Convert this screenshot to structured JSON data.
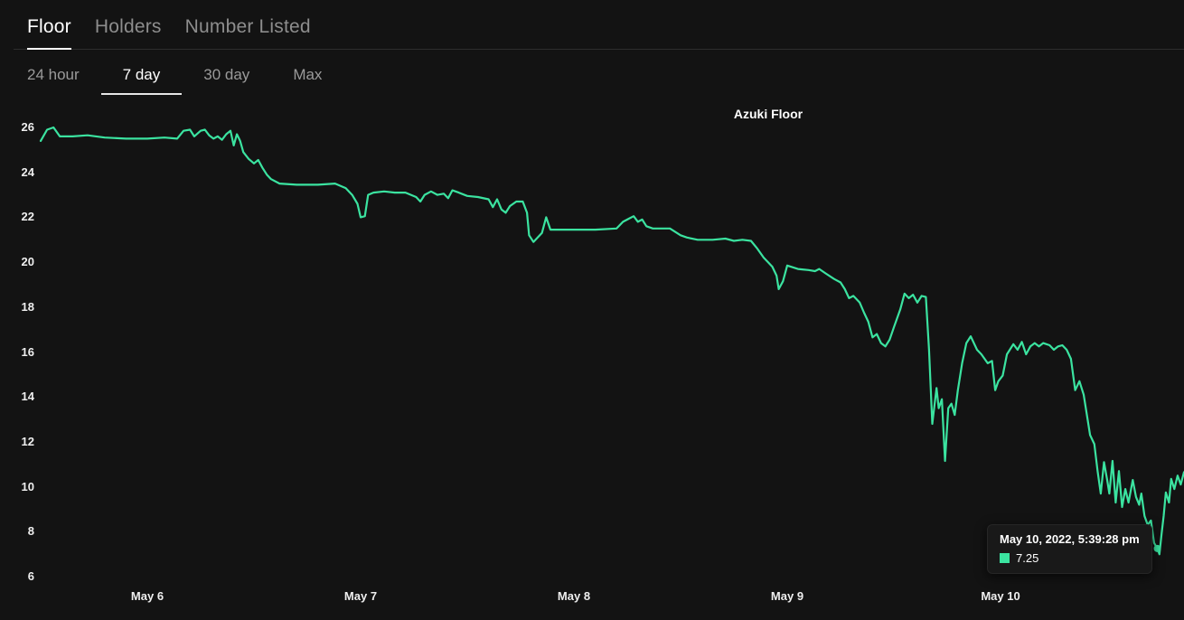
{
  "tabs": {
    "metric": [
      {
        "label": "Floor",
        "active": true
      },
      {
        "label": "Holders",
        "active": false
      },
      {
        "label": "Number Listed",
        "active": false
      }
    ],
    "range": [
      {
        "label": "24 hour",
        "active": false
      },
      {
        "label": "7 day",
        "active": true
      },
      {
        "label": "30 day",
        "active": false
      },
      {
        "label": "Max",
        "active": false
      }
    ]
  },
  "chart_data": {
    "type": "line",
    "title": "Azuki Floor",
    "x_unit": "days since May 6, 2022 00:00",
    "x_range_days": [
      -0.5,
      4.86
    ],
    "y_range": [
      6,
      26
    ],
    "grid": false,
    "legend": "none",
    "x_ticks": [
      {
        "pos": 0,
        "label": "May 6"
      },
      {
        "pos": 1,
        "label": "May 7"
      },
      {
        "pos": 2,
        "label": "May 8"
      },
      {
        "pos": 3,
        "label": "May 9"
      },
      {
        "pos": 4,
        "label": "May 10"
      }
    ],
    "y_ticks": [
      26,
      24,
      22,
      20,
      18,
      16,
      14,
      12,
      10,
      8,
      6
    ],
    "series": [
      {
        "name": "Azuki Floor",
        "color": "#3be3a0",
        "points": [
          [
            -0.5,
            25.4
          ],
          [
            -0.47,
            25.9
          ],
          [
            -0.44,
            26.0
          ],
          [
            -0.41,
            25.6
          ],
          [
            -0.35,
            25.6
          ],
          [
            -0.28,
            25.65
          ],
          [
            -0.2,
            25.55
          ],
          [
            -0.1,
            25.5
          ],
          [
            0.0,
            25.5
          ],
          [
            0.08,
            25.55
          ],
          [
            0.14,
            25.5
          ],
          [
            0.17,
            25.85
          ],
          [
            0.2,
            25.9
          ],
          [
            0.22,
            25.6
          ],
          [
            0.25,
            25.85
          ],
          [
            0.27,
            25.9
          ],
          [
            0.29,
            25.65
          ],
          [
            0.31,
            25.5
          ],
          [
            0.33,
            25.6
          ],
          [
            0.35,
            25.45
          ],
          [
            0.37,
            25.7
          ],
          [
            0.39,
            25.85
          ],
          [
            0.405,
            25.2
          ],
          [
            0.42,
            25.7
          ],
          [
            0.435,
            25.4
          ],
          [
            0.45,
            24.9
          ],
          [
            0.475,
            24.6
          ],
          [
            0.5,
            24.4
          ],
          [
            0.52,
            24.55
          ],
          [
            0.54,
            24.2
          ],
          [
            0.56,
            23.9
          ],
          [
            0.58,
            23.7
          ],
          [
            0.62,
            23.5
          ],
          [
            0.7,
            23.45
          ],
          [
            0.8,
            23.45
          ],
          [
            0.88,
            23.5
          ],
          [
            0.93,
            23.3
          ],
          [
            0.96,
            23.0
          ],
          [
            0.985,
            22.6
          ],
          [
            1.0,
            22.0
          ],
          [
            1.02,
            22.05
          ],
          [
            1.035,
            23.0
          ],
          [
            1.06,
            23.1
          ],
          [
            1.11,
            23.15
          ],
          [
            1.16,
            23.1
          ],
          [
            1.21,
            23.1
          ],
          [
            1.26,
            22.9
          ],
          [
            1.28,
            22.7
          ],
          [
            1.3,
            23.0
          ],
          [
            1.33,
            23.15
          ],
          [
            1.36,
            23.0
          ],
          [
            1.39,
            23.05
          ],
          [
            1.41,
            22.85
          ],
          [
            1.43,
            23.2
          ],
          [
            1.46,
            23.1
          ],
          [
            1.5,
            22.95
          ],
          [
            1.55,
            22.9
          ],
          [
            1.6,
            22.8
          ],
          [
            1.62,
            22.45
          ],
          [
            1.64,
            22.8
          ],
          [
            1.66,
            22.35
          ],
          [
            1.68,
            22.2
          ],
          [
            1.7,
            22.5
          ],
          [
            1.73,
            22.7
          ],
          [
            1.76,
            22.7
          ],
          [
            1.78,
            22.2
          ],
          [
            1.79,
            21.2
          ],
          [
            1.81,
            20.9
          ],
          [
            1.83,
            21.1
          ],
          [
            1.85,
            21.3
          ],
          [
            1.87,
            22.0
          ],
          [
            1.89,
            21.45
          ],
          [
            2.0,
            21.45
          ],
          [
            2.1,
            21.45
          ],
          [
            2.2,
            21.5
          ],
          [
            2.23,
            21.8
          ],
          [
            2.26,
            21.95
          ],
          [
            2.28,
            22.05
          ],
          [
            2.3,
            21.8
          ],
          [
            2.32,
            21.9
          ],
          [
            2.34,
            21.6
          ],
          [
            2.37,
            21.5
          ],
          [
            2.45,
            21.5
          ],
          [
            2.5,
            21.2
          ],
          [
            2.53,
            21.1
          ],
          [
            2.58,
            21.0
          ],
          [
            2.65,
            21.0
          ],
          [
            2.71,
            21.05
          ],
          [
            2.75,
            20.95
          ],
          [
            2.79,
            21.0
          ],
          [
            2.83,
            20.95
          ],
          [
            2.86,
            20.6
          ],
          [
            2.89,
            20.2
          ],
          [
            2.91,
            20.0
          ],
          [
            2.93,
            19.8
          ],
          [
            2.95,
            19.4
          ],
          [
            2.96,
            18.8
          ],
          [
            2.98,
            19.15
          ],
          [
            3.0,
            19.85
          ],
          [
            3.05,
            19.7
          ],
          [
            3.1,
            19.65
          ],
          [
            3.13,
            19.6
          ],
          [
            3.15,
            19.7
          ],
          [
            3.18,
            19.5
          ],
          [
            3.22,
            19.25
          ],
          [
            3.25,
            19.1
          ],
          [
            3.27,
            18.8
          ],
          [
            3.29,
            18.4
          ],
          [
            3.31,
            18.5
          ],
          [
            3.34,
            18.2
          ],
          [
            3.36,
            17.75
          ],
          [
            3.38,
            17.35
          ],
          [
            3.4,
            16.65
          ],
          [
            3.42,
            16.8
          ],
          [
            3.44,
            16.4
          ],
          [
            3.46,
            16.25
          ],
          [
            3.48,
            16.55
          ],
          [
            3.5,
            17.1
          ],
          [
            3.53,
            17.9
          ],
          [
            3.55,
            18.6
          ],
          [
            3.57,
            18.4
          ],
          [
            3.59,
            18.55
          ],
          [
            3.61,
            18.2
          ],
          [
            3.63,
            18.5
          ],
          [
            3.65,
            18.45
          ],
          [
            3.665,
            16.1
          ],
          [
            3.68,
            12.8
          ],
          [
            3.7,
            14.4
          ],
          [
            3.71,
            13.5
          ],
          [
            3.725,
            13.9
          ],
          [
            3.74,
            11.15
          ],
          [
            3.755,
            13.5
          ],
          [
            3.77,
            13.7
          ],
          [
            3.785,
            13.2
          ],
          [
            3.8,
            14.3
          ],
          [
            3.82,
            15.5
          ],
          [
            3.84,
            16.4
          ],
          [
            3.86,
            16.7
          ],
          [
            3.89,
            16.1
          ],
          [
            3.91,
            15.9
          ],
          [
            3.94,
            15.5
          ],
          [
            3.96,
            15.6
          ],
          [
            3.975,
            14.3
          ],
          [
            3.99,
            14.7
          ],
          [
            4.01,
            14.95
          ],
          [
            4.03,
            15.9
          ],
          [
            4.06,
            16.35
          ],
          [
            4.08,
            16.1
          ],
          [
            4.1,
            16.45
          ],
          [
            4.12,
            15.9
          ],
          [
            4.14,
            16.25
          ],
          [
            4.16,
            16.4
          ],
          [
            4.18,
            16.25
          ],
          [
            4.2,
            16.4
          ],
          [
            4.23,
            16.3
          ],
          [
            4.25,
            16.1
          ],
          [
            4.27,
            16.25
          ],
          [
            4.29,
            16.3
          ],
          [
            4.31,
            16.1
          ],
          [
            4.33,
            15.7
          ],
          [
            4.35,
            14.3
          ],
          [
            4.37,
            14.7
          ],
          [
            4.39,
            14.1
          ],
          [
            4.42,
            12.3
          ],
          [
            4.44,
            11.9
          ],
          [
            4.455,
            10.7
          ],
          [
            4.47,
            9.7
          ],
          [
            4.485,
            11.1
          ],
          [
            4.5,
            10.3
          ],
          [
            4.51,
            9.7
          ],
          [
            4.525,
            11.15
          ],
          [
            4.54,
            9.3
          ],
          [
            4.555,
            10.7
          ],
          [
            4.57,
            9.1
          ],
          [
            4.585,
            9.9
          ],
          [
            4.6,
            9.3
          ],
          [
            4.62,
            10.3
          ],
          [
            4.635,
            9.55
          ],
          [
            4.65,
            9.2
          ],
          [
            4.66,
            9.7
          ],
          [
            4.675,
            8.7
          ],
          [
            4.69,
            8.3
          ],
          [
            4.705,
            8.5
          ],
          [
            4.72,
            7.5
          ],
          [
            4.735,
            7.25
          ],
          [
            4.745,
            7.0
          ],
          [
            4.755,
            7.9
          ],
          [
            4.765,
            8.7
          ],
          [
            4.775,
            9.75
          ],
          [
            4.79,
            9.3
          ],
          [
            4.8,
            10.35
          ],
          [
            4.815,
            9.9
          ],
          [
            4.83,
            10.5
          ],
          [
            4.845,
            10.1
          ],
          [
            4.86,
            10.65
          ]
        ]
      }
    ]
  },
  "tooltip": {
    "date": "May 10, 2022, 5:39:28 pm",
    "value": "7.25",
    "point": [
      4.735,
      7.25
    ]
  }
}
